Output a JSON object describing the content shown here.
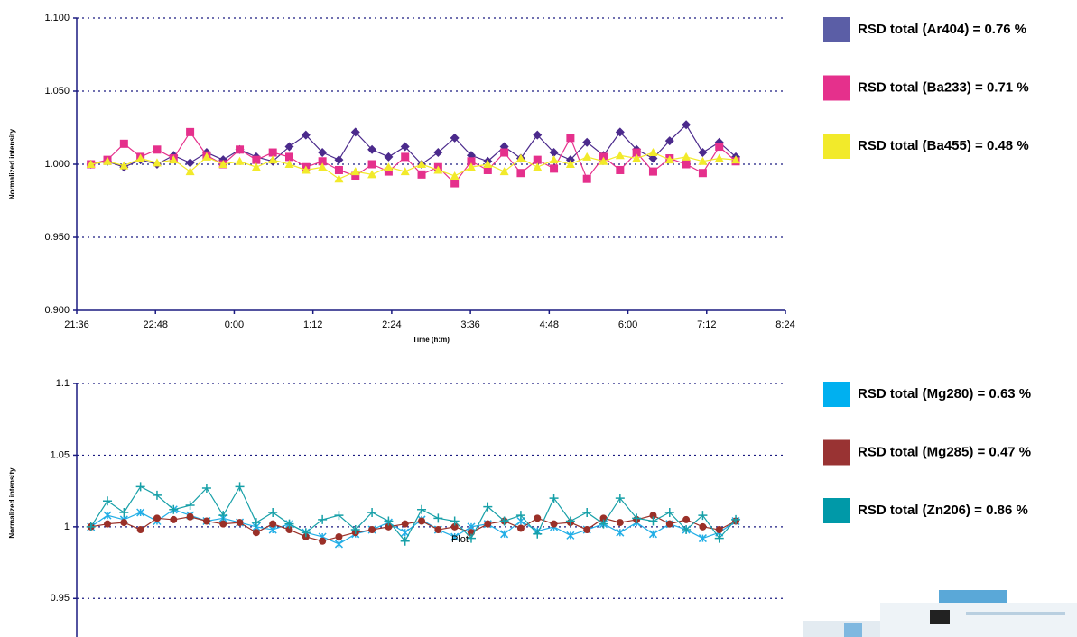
{
  "chart_data": [
    {
      "type": "line",
      "x_label": "Time (h:m)",
      "y_label": "Normalized intensity",
      "xlim": [
        0.9,
        1.35
      ],
      "xticks": [
        {
          "value": 0.9,
          "label": "21:36"
        },
        {
          "value": 0.95,
          "label": "22:48"
        },
        {
          "value": 1.0,
          "label": "0:00"
        },
        {
          "value": 1.05,
          "label": "1:12"
        },
        {
          "value": 1.1,
          "label": "2:24"
        },
        {
          "value": 1.15,
          "label": "3:36"
        },
        {
          "value": 1.2,
          "label": "4:48"
        },
        {
          "value": 1.25,
          "label": "6:00"
        },
        {
          "value": 1.3,
          "label": "7:12"
        },
        {
          "value": 1.35,
          "label": "8:24"
        }
      ],
      "ylim": [
        0.9,
        1.1
      ],
      "yticks": [
        {
          "value": 0.9,
          "label": "0.900"
        },
        {
          "value": 0.95,
          "label": "0.950"
        },
        {
          "value": 1.0,
          "label": "1.000"
        },
        {
          "value": 1.05,
          "label": "1.050"
        },
        {
          "value": 1.1,
          "label": "1.100"
        }
      ],
      "grid": true,
      "x": [
        0.909,
        0.9195,
        0.93,
        0.9405,
        0.951,
        0.9615,
        0.972,
        0.9825,
        0.993,
        1.0035,
        1.014,
        1.0245,
        1.035,
        1.0455,
        1.056,
        1.0665,
        1.077,
        1.0875,
        1.098,
        1.1085,
        1.119,
        1.1295,
        1.14,
        1.1505,
        1.161,
        1.1715,
        1.182,
        1.1925,
        1.203,
        1.2135,
        1.224,
        1.2345,
        1.245,
        1.2555,
        1.266,
        1.2765,
        1.287,
        1.2975,
        1.308,
        1.3185
      ],
      "series": [
        {
          "name": "RSD total (Ar404) = 0.76 %",
          "color": "#4b2a8c",
          "legend_color": "#5b5ea6",
          "marker": "diamond",
          "values": [
            1.0,
            1.002,
            0.998,
            1.003,
            1.0,
            1.006,
            1.001,
            1.008,
            1.003,
            1.01,
            1.005,
            1.002,
            1.012,
            1.02,
            1.008,
            1.003,
            1.022,
            1.01,
            1.005,
            1.012,
            1.0,
            1.008,
            1.018,
            1.006,
            1.002,
            1.012,
            1.004,
            1.02,
            1.008,
            1.003,
            1.015,
            1.006,
            1.022,
            1.01,
            1.004,
            1.016,
            1.027,
            1.008,
            1.015,
            1.005
          ]
        },
        {
          "name": "RSD total (Ba233) = 0.71 %",
          "color": "#e5308c",
          "legend_color": "#e5308c",
          "marker": "square",
          "values": [
            1.0,
            1.003,
            1.014,
            1.005,
            1.01,
            1.004,
            1.022,
            1.006,
            1.0,
            1.01,
            1.003,
            1.008,
            1.005,
            0.998,
            1.002,
            0.996,
            0.992,
            1.0,
            0.995,
            1.005,
            0.993,
            0.998,
            0.987,
            1.002,
            0.996,
            1.008,
            0.994,
            1.003,
            0.997,
            1.018,
            0.99,
            1.005,
            0.996,
            1.008,
            0.995,
            1.004,
            1.0,
            0.994,
            1.012,
            1.002
          ]
        },
        {
          "name": "RSD total (Ba455) = 0.48 %",
          "color": "#f2ea2a",
          "legend_color": "#f2ea2a",
          "marker": "triangle",
          "values": [
            1.0,
            1.002,
            0.999,
            1.004,
            1.001,
            1.003,
            0.995,
            1.005,
            1.0,
            1.002,
            0.998,
            1.003,
            1.0,
            0.996,
            0.998,
            0.99,
            0.995,
            0.993,
            0.998,
            0.995,
            1.0,
            0.996,
            0.992,
            0.998,
            1.0,
            0.995,
            1.004,
            0.998,
            1.003,
            1.0,
            1.005,
            1.002,
            1.006,
            1.004,
            1.008,
            1.003,
            1.005,
            1.002,
            1.004,
            1.003
          ]
        }
      ]
    },
    {
      "type": "line",
      "y_label": "Normalized intensity",
      "annotation": "Plot",
      "xlim": [
        0.9,
        1.35
      ],
      "ylim": [
        0.925,
        1.1
      ],
      "yticks": [
        0.95,
        1,
        1.05,
        1.1
      ],
      "grid": true,
      "x": [
        0.909,
        0.9195,
        0.93,
        0.9405,
        0.951,
        0.9615,
        0.972,
        0.9825,
        0.993,
        1.0035,
        1.014,
        1.0245,
        1.035,
        1.0455,
        1.056,
        1.0665,
        1.077,
        1.0875,
        1.098,
        1.1085,
        1.119,
        1.1295,
        1.14,
        1.1505,
        1.161,
        1.1715,
        1.182,
        1.1925,
        1.203,
        1.2135,
        1.224,
        1.2345,
        1.245,
        1.2555,
        1.266,
        1.2765,
        1.287,
        1.2975,
        1.308,
        1.3185
      ],
      "series": [
        {
          "name": "RSD total (Mg280) = 0.63 %",
          "color": "#22aee6",
          "legend_color": "#00b0f0",
          "marker": "cross",
          "values": [
            1.0,
            1.008,
            1.005,
            1.01,
            1.004,
            1.012,
            1.008,
            1.004,
            1.006,
            1.003,
            1.0,
            0.998,
            1.002,
            0.996,
            0.993,
            0.988,
            0.995,
            0.998,
            1.003,
            0.996,
            1.005,
            0.998,
            0.993,
            1.0,
            1.002,
            0.995,
            1.004,
            0.997,
            1.0,
            0.994,
            0.998,
            1.002,
            0.996,
            1.003,
            0.995,
            1.002,
            0.998,
            0.992,
            0.996,
            1.004
          ]
        },
        {
          "name": "RSD total (Mg285) = 0.47 %",
          "color": "#9a3028",
          "legend_color": "#993333",
          "marker": "circle",
          "values": [
            1.0,
            1.002,
            1.003,
            0.998,
            1.006,
            1.005,
            1.007,
            1.004,
            1.002,
            1.003,
            0.996,
            1.002,
            0.998,
            0.993,
            0.99,
            0.993,
            0.996,
            0.998,
            1.0,
            1.002,
            1.004,
            0.998,
            1.0,
            0.996,
            1.002,
            1.004,
            0.999,
            1.006,
            1.002,
            1.003,
            0.998,
            1.006,
            1.003,
            1.005,
            1.008,
            1.002,
            1.005,
            1.0,
            0.998,
            1.004
          ]
        },
        {
          "name": "RSD total (Zn206) = 0.86 %",
          "color": "#17a0a8",
          "legend_color": "#0099a8",
          "marker": "plus",
          "values": [
            1.0,
            1.018,
            1.01,
            1.028,
            1.022,
            1.012,
            1.015,
            1.027,
            1.008,
            1.028,
            1.003,
            1.01,
            1.002,
            0.996,
            1.005,
            1.008,
            0.998,
            1.01,
            1.004,
            0.99,
            1.012,
            1.006,
            1.004,
            0.992,
            1.014,
            1.004,
            1.008,
            0.995,
            1.02,
            1.004,
            1.01,
            1.002,
            1.02,
            1.006,
            1.004,
            1.01,
            0.998,
            1.008,
            0.992,
            1.005
          ]
        }
      ]
    }
  ]
}
